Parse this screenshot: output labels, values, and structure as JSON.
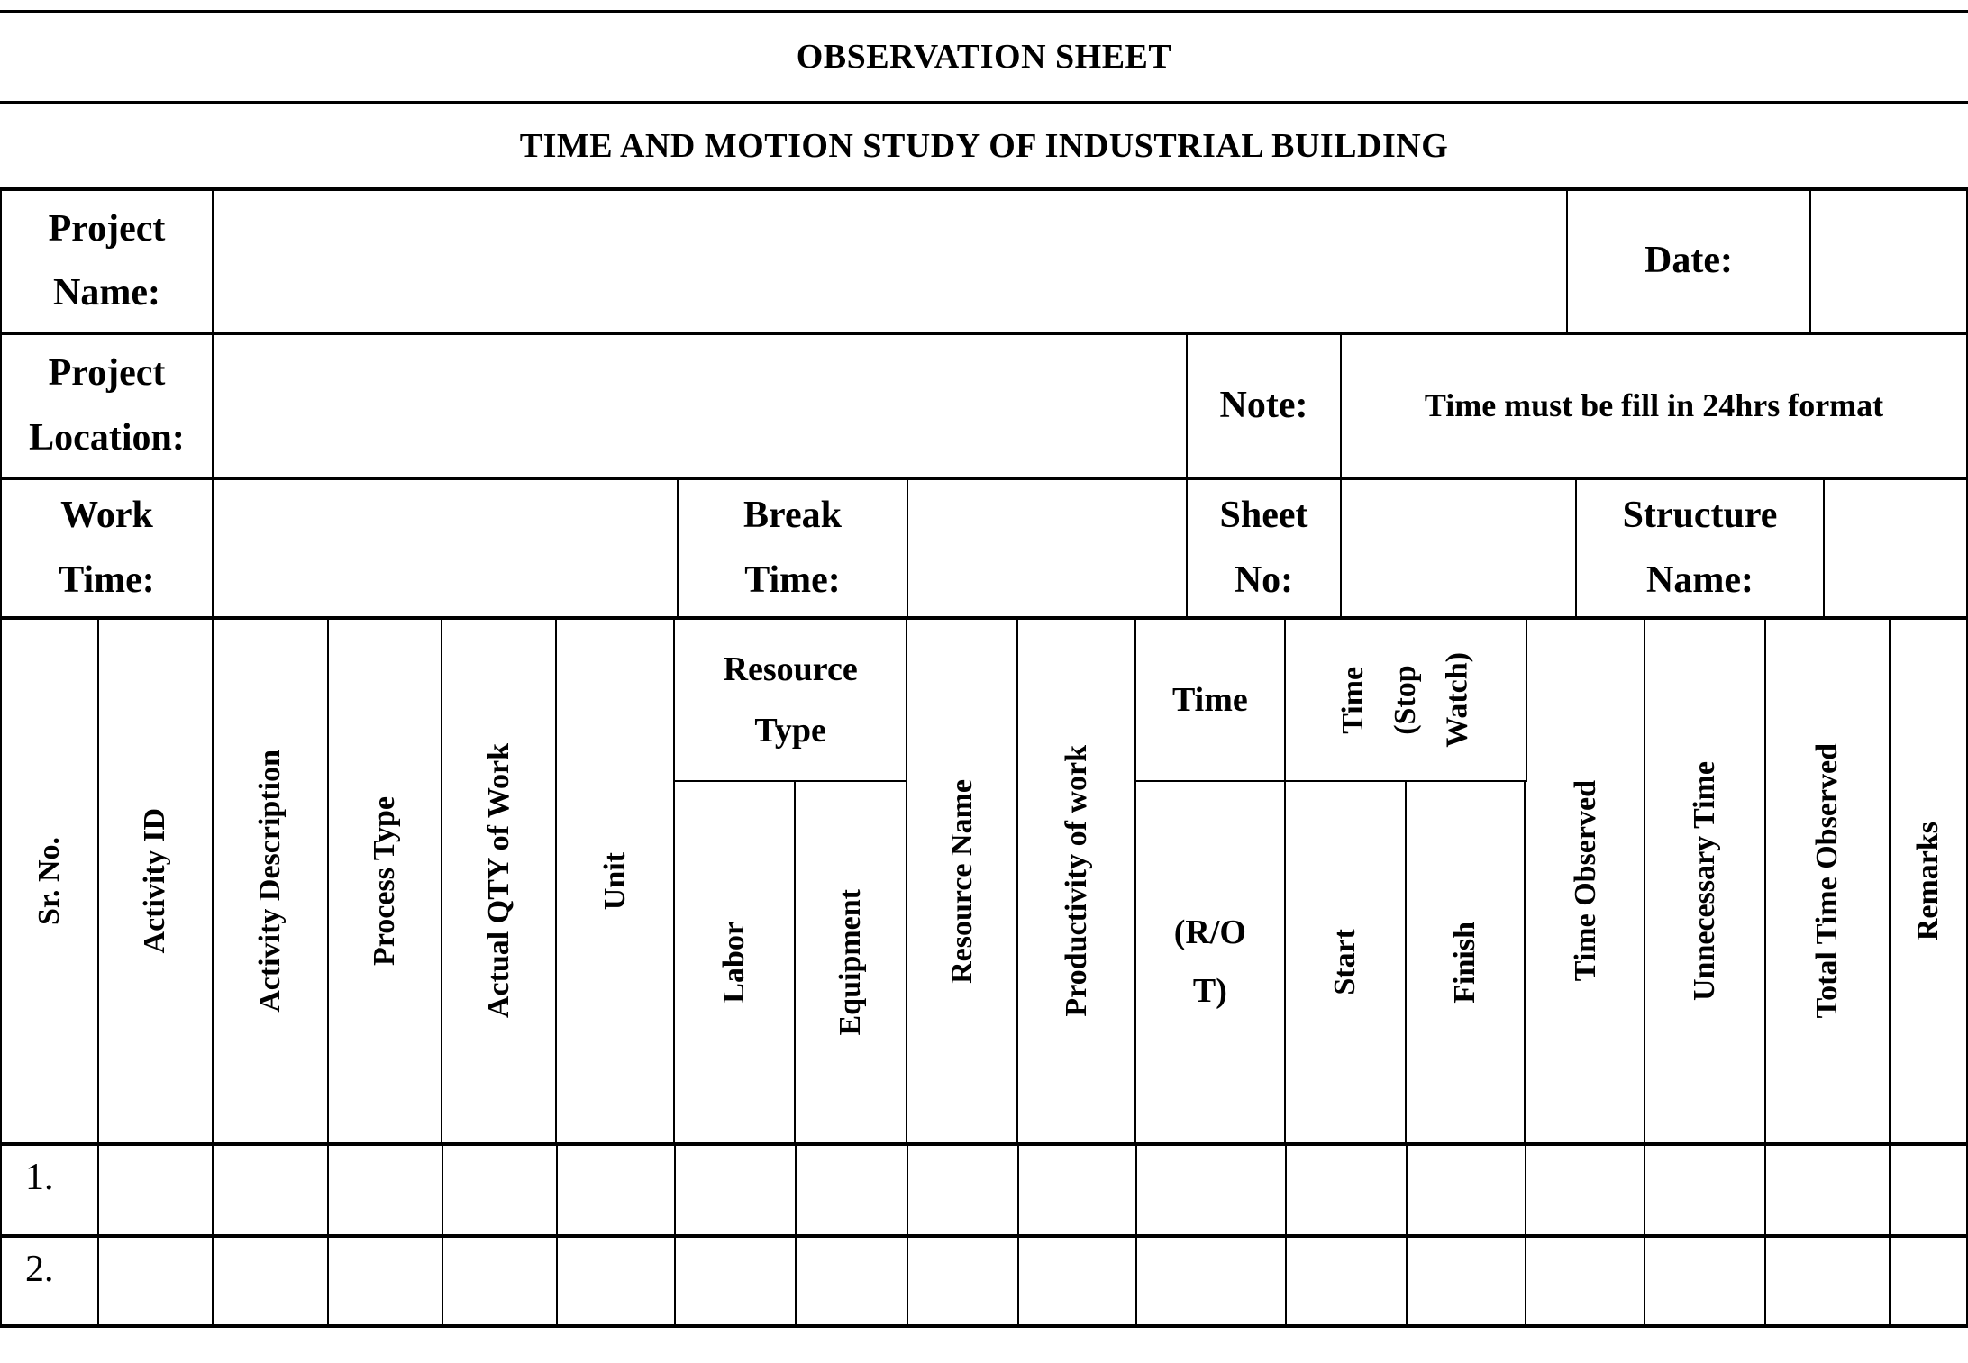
{
  "titles": {
    "main": "OBSERVATION SHEET",
    "sub": "TIME AND MOTION STUDY OF INDUSTRIAL BUILDING"
  },
  "info": {
    "project_name_label": "Project\nName:",
    "date_label": "Date:",
    "project_location_label": "Project\nLocation:",
    "note_label": "Note:",
    "note_text": "Time must be fill in 24hrs format",
    "work_time_label": "Work\nTime:",
    "break_time_label": "Break\nTime:",
    "sheet_no_label": "Sheet\nNo:",
    "structure_name_label": "Structure\nName:"
  },
  "columns": {
    "sr_no": "Sr. No.",
    "activity_id": "Activity ID",
    "activity_description": "Activity Description",
    "process_type": "Process Type",
    "actual_qty": "Actual QTY of Work",
    "unit": "Unit",
    "resource_type": "Resource\nType",
    "labor": "Labor",
    "equipment": "Equipment",
    "resource_name": "Resource Name",
    "productivity": "Productivity of work",
    "time": "Time",
    "rot": "(R/O\nT)",
    "stopwatch": "Time\n(Stop\nWatch)",
    "start": "Start",
    "finish": "Finish",
    "time_observed": "Time Observed",
    "unnecessary_time": "Unnecessary Time",
    "total_time_observed": "Total Time Observed",
    "remarks": "Remarks"
  },
  "rows": [
    {
      "sr": "1."
    },
    {
      "sr": "2."
    }
  ]
}
